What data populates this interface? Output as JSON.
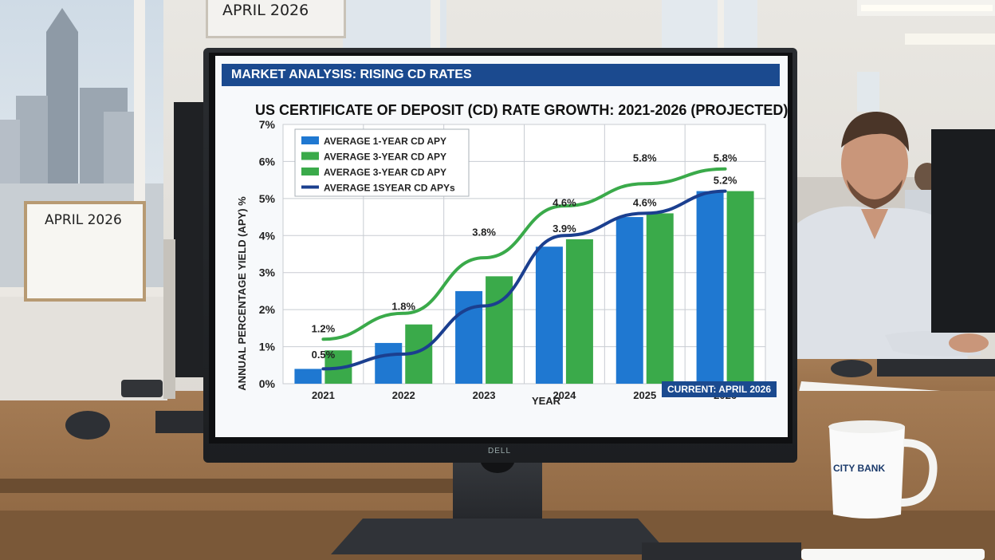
{
  "scene": {
    "wall_board_top": "APRIL 2026",
    "wall_board_left": "APRIL 2026",
    "monitor_brand": "DELL",
    "mug_text": "CITY BANK"
  },
  "screen": {
    "banner": "MARKET ANALYSIS: RISING CD RATES",
    "current_badge": "CURRENT: APRIL 2026"
  },
  "chart_data": {
    "type": "bar",
    "title": "US CERTIFICATE OF DEPOSIT (CD) RATE GROWTH: 2021-2026 (PROJECTED)",
    "xlabel": "YEAR",
    "ylabel": "ANNUAL PERCENTAGE YIELD (APY) %",
    "categories": [
      "2021",
      "2022",
      "2023",
      "2024",
      "2025",
      "2026"
    ],
    "ylim": [
      0,
      7
    ],
    "yticks": [
      "0%",
      "1%",
      "2%",
      "3%",
      "4%",
      "5%",
      "6%",
      "7%"
    ],
    "grid": true,
    "legend_position": "top-left",
    "legend": [
      "AVERAGE 1-YEAR CD APY",
      "AVERAGE 3-YEAR CD APY",
      "AVERAGE 3-YEAR CD APY",
      "AVERAGE 1SYEAR CD APYs"
    ],
    "bar_series": [
      {
        "values": [
          0.4,
          1.1,
          2.5,
          3.7,
          4.5,
          5.2
        ],
        "color": "#1f78d1"
      },
      {
        "values": [
          0.9,
          1.6,
          2.9,
          3.9,
          4.6,
          5.2
        ],
        "color": "#3aaa4a"
      }
    ],
    "line_series": [
      {
        "values": [
          1.2,
          1.9,
          3.4,
          4.8,
          5.4,
          5.8
        ],
        "color": "#3aaa4a"
      },
      {
        "values": [
          0.4,
          0.8,
          2.1,
          4.0,
          4.6,
          5.2
        ],
        "color": "#1b3f8f"
      }
    ],
    "data_labels": [
      {
        "category": "2021",
        "value": 0.5,
        "text": "0.5%"
      },
      {
        "category": "2021",
        "value": 1.2,
        "text": "1.2%"
      },
      {
        "category": "2022",
        "value": 1.8,
        "text": "1.8%"
      },
      {
        "category": "2023",
        "value": 3.8,
        "text": "3.8%"
      },
      {
        "category": "2024",
        "value": 3.9,
        "text": "3.9%"
      },
      {
        "category": "2024",
        "value": 4.6,
        "text": "4.6%"
      },
      {
        "category": "2025",
        "value": 4.6,
        "text": "4.6%"
      },
      {
        "category": "2025",
        "value": 5.8,
        "text": "5.8%"
      },
      {
        "category": "2026",
        "value": 5.8,
        "text": "5.8%"
      },
      {
        "category": "2026",
        "value": 5.2,
        "text": "5.2%"
      }
    ],
    "colors": {
      "blue": "#1f78d1",
      "green": "#3aaa4a",
      "navy": "#1b3f8f"
    }
  }
}
